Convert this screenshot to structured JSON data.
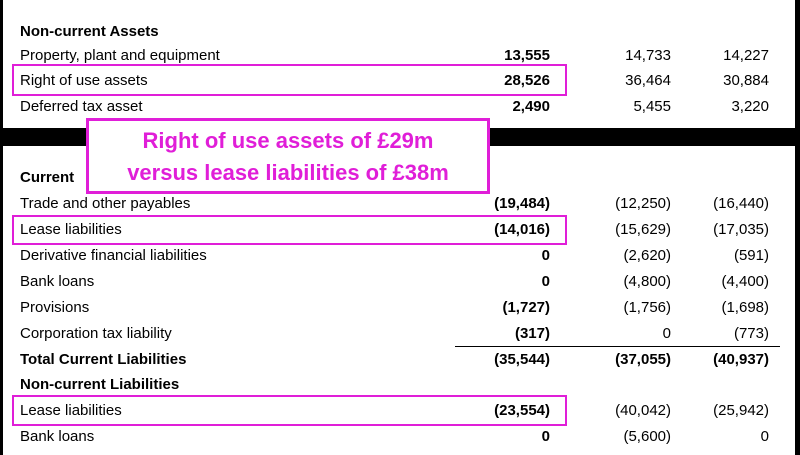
{
  "assets": {
    "heading": "Non-current Assets",
    "rows": [
      {
        "label": "Property, plant and equipment",
        "v1": "13,555",
        "v2": "14,733",
        "v3": "14,227"
      },
      {
        "label": "Right of use assets",
        "v1": "28,526",
        "v2": "36,464",
        "v3": "30,884"
      },
      {
        "label": "Deferred tax asset",
        "v1": "2,490",
        "v2": "5,455",
        "v3": "3,220"
      }
    ]
  },
  "liabilities": {
    "heading": "Current",
    "rows": [
      {
        "label": "Trade and other payables",
        "v1": "(19,484)",
        "v2": "(12,250)",
        "v3": "(16,440)"
      },
      {
        "label": "Lease liabilities",
        "v1": "(14,016)",
        "v2": "(15,629)",
        "v3": "(17,035)"
      },
      {
        "label": "Derivative financial liabilities",
        "v1": "0",
        "v2": "(2,620)",
        "v3": "(591)"
      },
      {
        "label": "Bank loans",
        "v1": "0",
        "v2": "(4,800)",
        "v3": "(4,400)"
      },
      {
        "label": "Provisions",
        "v1": "(1,727)",
        "v2": "(1,756)",
        "v3": "(1,698)"
      },
      {
        "label": "Corporation tax liability",
        "v1": "(317)",
        "v2": "0",
        "v3": "(773)"
      }
    ],
    "total": {
      "label": "Total Current Liabilities",
      "v1": "(35,544)",
      "v2": "(37,055)",
      "v3": "(40,937)"
    },
    "noncurrent_heading": "Non-current Liabilities",
    "noncurrent_rows": [
      {
        "label": "Lease liabilities",
        "v1": "(23,554)",
        "v2": "(40,042)",
        "v3": "(25,942)"
      },
      {
        "label": "Bank loans",
        "v1": "0",
        "v2": "(5,600)",
        "v3": "0"
      }
    ]
  },
  "callout": {
    "line1": "Right of use assets of £29m",
    "line2": "versus lease liabilities of £38m"
  },
  "colors": {
    "highlight": "#e01ed8",
    "background": "#000000"
  }
}
